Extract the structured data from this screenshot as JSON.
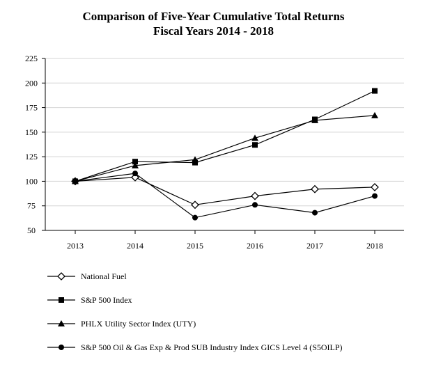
{
  "chart_data": {
    "type": "line",
    "title": "Comparison of Five-Year Cumulative Total Returns",
    "subtitle": "Fiscal Years 2014 - 2018",
    "xlabel": "",
    "ylabel": "",
    "x": [
      "2013",
      "2014",
      "2015",
      "2016",
      "2017",
      "2018"
    ],
    "ylim": [
      50,
      225
    ],
    "yticks": [
      50,
      75,
      100,
      125,
      150,
      175,
      200,
      225
    ],
    "grid": true,
    "legend_position": "bottom",
    "series": [
      {
        "name": "National Fuel",
        "marker": "diamond-open",
        "values": [
          100,
          104,
          76,
          85,
          92,
          94
        ]
      },
      {
        "name": "S&P 500 Index",
        "marker": "square",
        "values": [
          100,
          120,
          119,
          137,
          163,
          192
        ]
      },
      {
        "name": "PHLX Utility Sector Index (UTY)",
        "marker": "triangle",
        "values": [
          100,
          116,
          122,
          144,
          162,
          167
        ]
      },
      {
        "name": "S&P 500 Oil & Gas Exp & Prod SUB Industry Index GICS Level 4 (S5OILP)",
        "marker": "circle",
        "values": [
          100,
          108,
          63,
          76,
          68,
          85
        ]
      }
    ]
  }
}
